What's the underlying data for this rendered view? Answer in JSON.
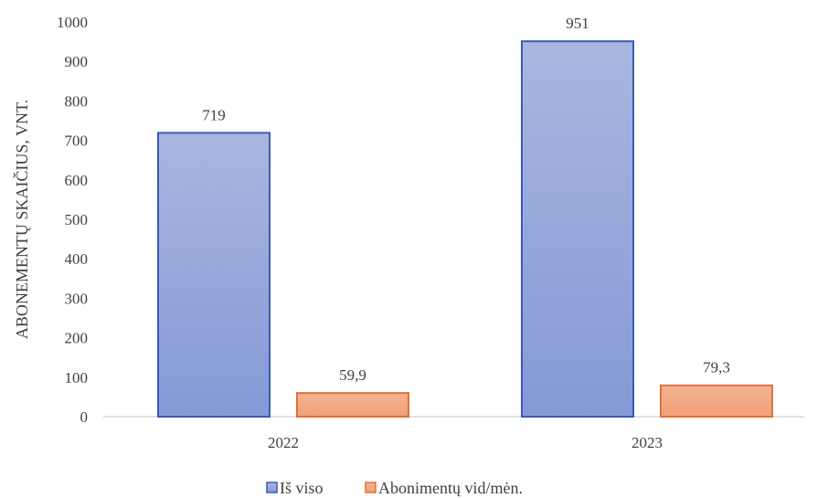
{
  "chart_data": {
    "type": "bar",
    "categories": [
      "2022",
      "2023"
    ],
    "series": [
      {
        "name": "Iš viso",
        "values": [
          719,
          951
        ],
        "labels": [
          "719",
          "951"
        ],
        "color": "#8FA3DA",
        "stroke": "#3A5BB8"
      },
      {
        "name": "Abonimentų vid/mėn.",
        "values": [
          59.9,
          79.3
        ],
        "labels": [
          "59,9",
          "79,3"
        ],
        "color": "#F2A883",
        "stroke": "#E0703A"
      }
    ],
    "ylabel": "ABONEMENTŲ SKAIČIUS, VNT.",
    "xlabel": "",
    "title": "",
    "ylim": [
      0,
      1000
    ],
    "yticks": [
      0,
      100,
      200,
      300,
      400,
      500,
      600,
      700,
      800,
      900,
      1000
    ],
    "grid": false,
    "legend_position": "bottom"
  }
}
